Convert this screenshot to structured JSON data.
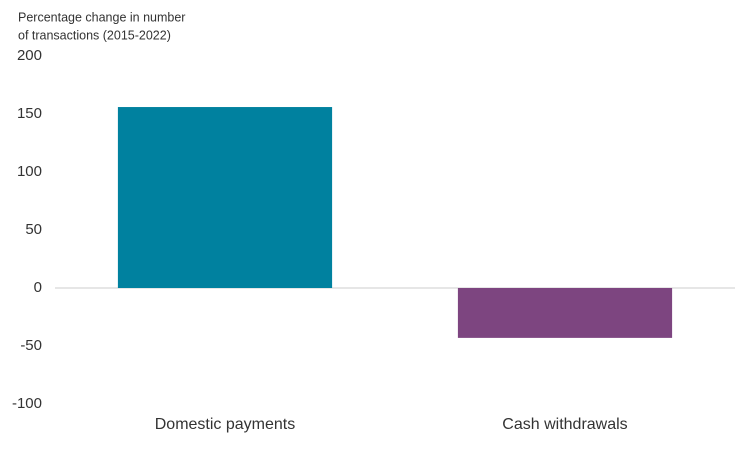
{
  "chart_data": {
    "type": "bar",
    "y_label": [
      "Percentage change in number",
      "of transactions (2015-2022)"
    ],
    "categories": [
      "Domestic payments",
      "Cash withdrawals"
    ],
    "values": [
      156,
      -43
    ],
    "colors": [
      "#00819f",
      "#7d4580"
    ],
    "ylim": [
      -100,
      200
    ],
    "yticks": [
      -100,
      -50,
      0,
      50,
      100,
      150,
      200
    ],
    "grid": false
  }
}
